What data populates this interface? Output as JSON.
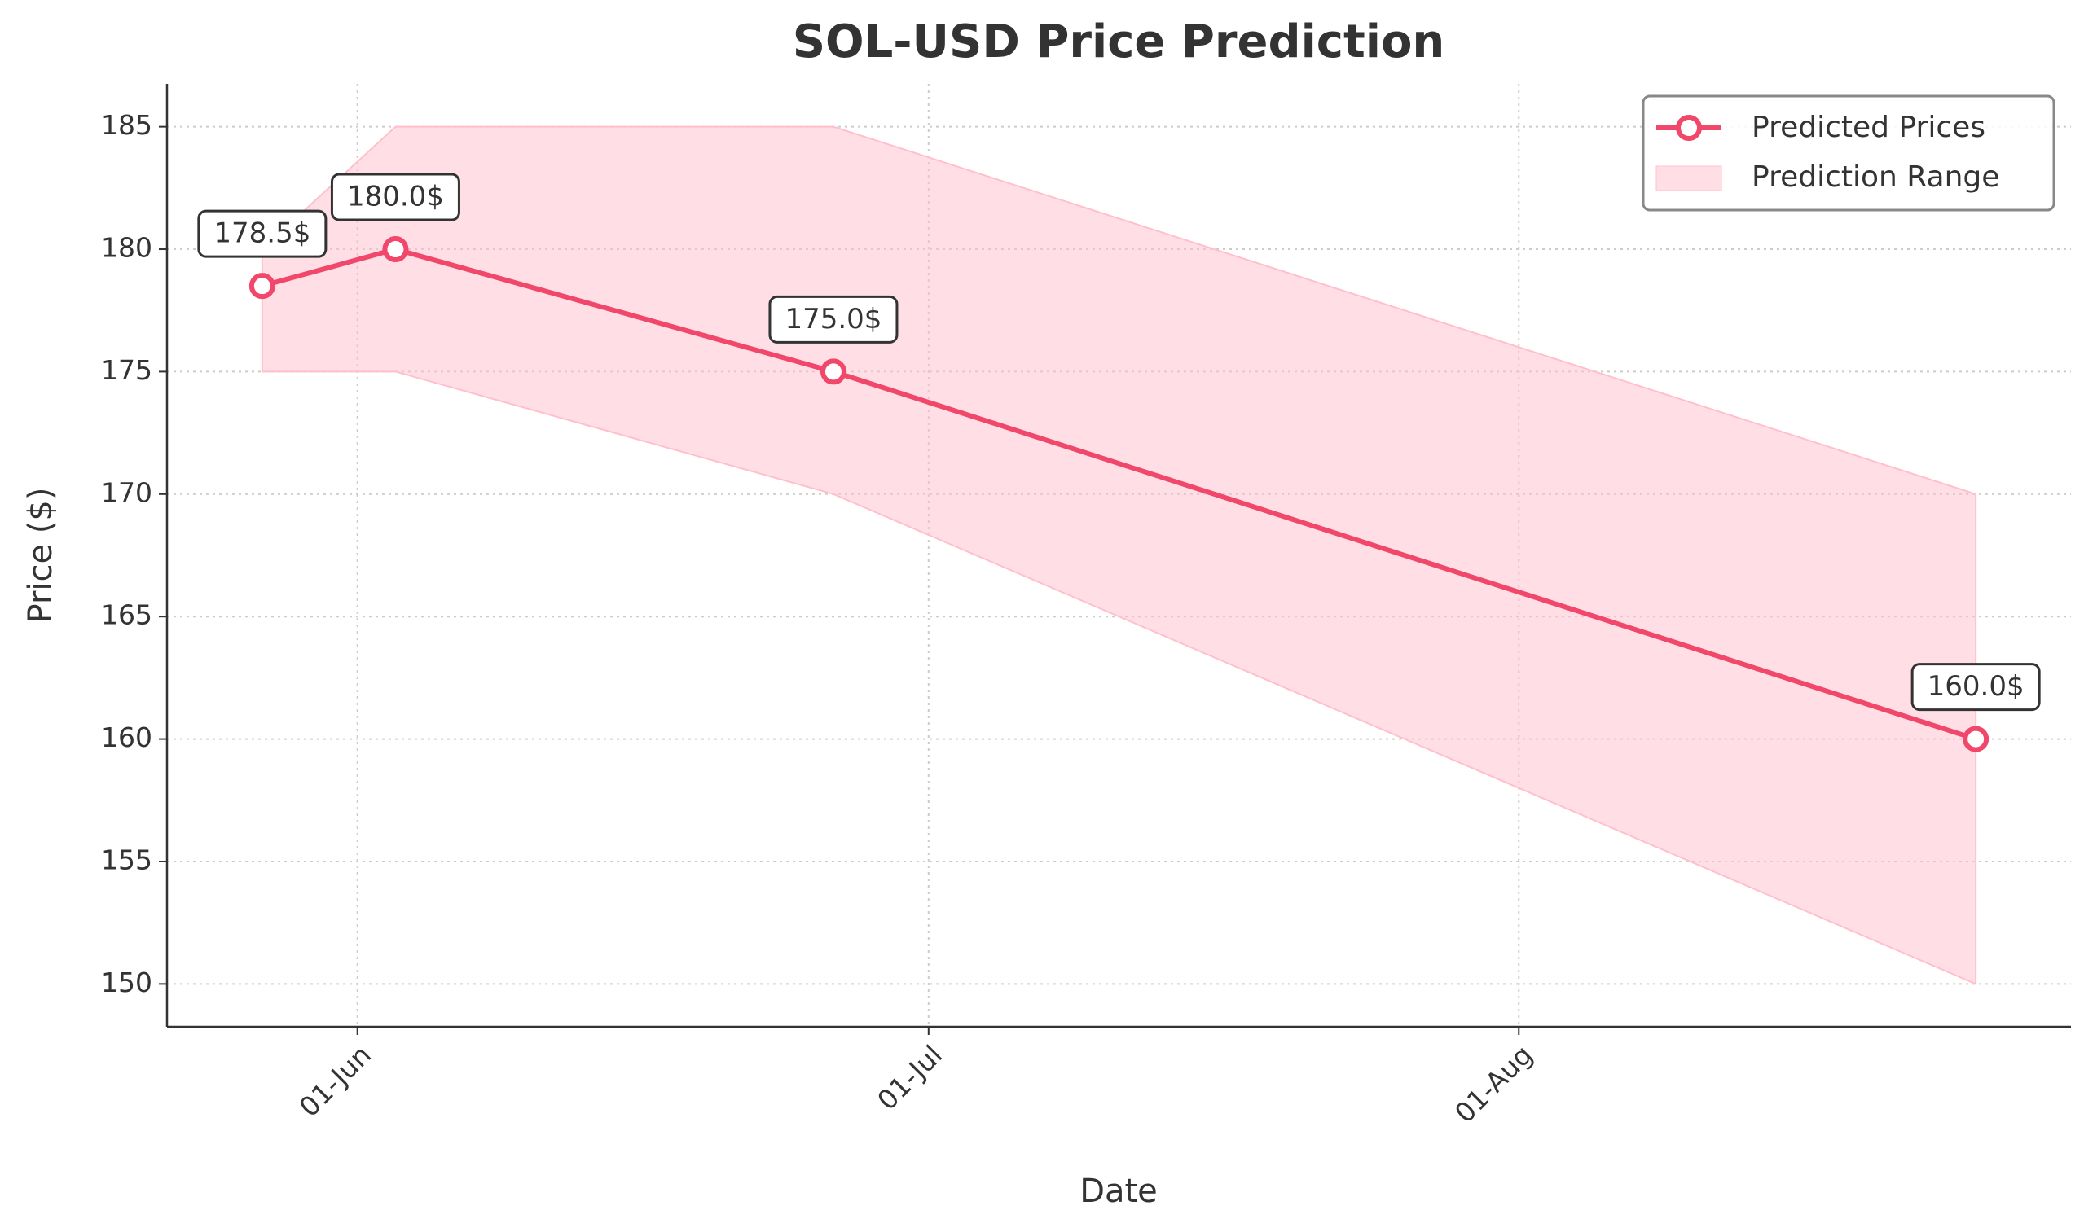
{
  "chart_data": {
    "type": "line",
    "title": "SOL-USD Price Prediction",
    "x_label": "Date",
    "y_label": "Price ($)",
    "x": [
      "27-May",
      "03-Jun",
      "26-Jun",
      "25-Aug"
    ],
    "series": [
      {
        "name": "Predicted Prices",
        "color": "#f0476a",
        "values": [
          178.5,
          180.0,
          175.0,
          160.0
        ],
        "value_labels": [
          "178.5$",
          "180.0$",
          "175.0$",
          "160.0$"
        ]
      }
    ],
    "band": {
      "name": "Prediction Range",
      "color": "#ffc0cb",
      "lower": [
        175,
        175,
        170,
        150
      ],
      "upper": [
        180,
        185,
        185,
        170
      ]
    },
    "xlim": [
      "22-May",
      "30-Aug"
    ],
    "xticks": [
      "01-Jun",
      "01-Jul",
      "01-Aug"
    ],
    "ylim": [
      148.25,
      186.75
    ],
    "yticks": [
      150,
      155,
      160,
      165,
      170,
      175,
      180,
      185
    ],
    "grid": true,
    "legend": "upper right"
  }
}
